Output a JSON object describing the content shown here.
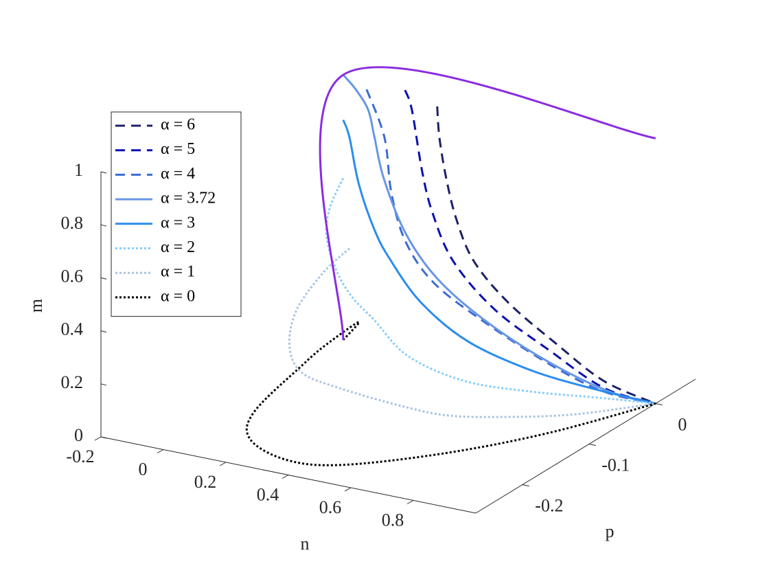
{
  "chart_data": {
    "type": "line3d",
    "xlabel": "n",
    "ylabel": "p",
    "zlabel": "m",
    "xlim": [
      -0.2,
      1
    ],
    "xticks": [
      -0.2,
      0,
      0.2,
      0.4,
      0.6,
      0.8
    ],
    "ylim": [
      -0.27,
      0.06
    ],
    "yticks": [
      -0.2,
      -0.1,
      0
    ],
    "zlim": [
      0,
      1
    ],
    "zticks": [
      0,
      0.2,
      0.4,
      0.6,
      0.8,
      1
    ],
    "legend": "upper left",
    "series": [
      {
        "name": "α = 6",
        "color": "#1c2166",
        "style": "dashed",
        "x": [
          0.301,
          0.308,
          0.33,
          0.363,
          0.418,
          0.527,
          0.681,
          0.835,
          1
        ],
        "y": [
          0,
          0,
          0,
          0,
          0,
          0,
          0,
          0,
          0
        ],
        "z": [
          0.953,
          0.838,
          0.688,
          0.54,
          0.398,
          0.269,
          0.15,
          0.045,
          0
        ]
      },
      {
        "name": "α = 5",
        "color": "#0a0fb0",
        "style": "dashed",
        "x": [
          0.198,
          0.22,
          0.253,
          0.286,
          0.352,
          0.484,
          0.66,
          0.835,
          1
        ],
        "y": [
          0,
          0,
          0,
          0,
          0,
          0,
          0,
          0,
          0
        ],
        "z": [
          0.99,
          0.92,
          0.695,
          0.548,
          0.382,
          0.232,
          0.119,
          0.019,
          0
        ]
      },
      {
        "name": "α = 4",
        "color": "#3d6bd4",
        "style": "dashed",
        "x": [
          0.075,
          0.132,
          0.154,
          0.198,
          0.286,
          0.44,
          0.66,
          0.835,
          1
        ],
        "y": [
          0,
          0,
          0,
          0,
          0,
          0,
          0,
          0,
          0
        ],
        "z": [
          0.963,
          0.796,
          0.594,
          0.423,
          0.289,
          0.183,
          0.067,
          0.005,
          0
        ]
      },
      {
        "name": "α = 3.72",
        "color": "#6896e4",
        "style": "solid",
        "x": [
          0,
          0.04,
          0.08,
          0.1,
          0.13,
          0.2,
          0.3,
          0.45,
          0.65,
          0.85,
          1
        ],
        "y": [
          0,
          0,
          0,
          0,
          0,
          0,
          0,
          0,
          0,
          0,
          0
        ],
        "z": [
          1,
          0.955,
          0.887,
          0.79,
          0.64,
          0.45,
          0.305,
          0.185,
          0.078,
          0.01,
          0
        ]
      },
      {
        "name": "α = 3",
        "color": "#2b8cee",
        "style": "solid",
        "x": [
          0,
          0.02,
          0.05,
          0.1,
          0.15,
          0.25,
          0.4,
          0.6,
          0.8,
          1
        ],
        "y": [
          0,
          0,
          0,
          0,
          0,
          0,
          0,
          0,
          0,
          0
        ],
        "z": [
          0.83,
          0.77,
          0.6,
          0.44,
          0.34,
          0.2,
          0.09,
          0.03,
          0.008,
          0
        ]
      },
      {
        "name": "α = 2",
        "color": "#87cefa",
        "style": "dotted",
        "x": [
          0,
          0,
          0,
          0.02,
          0.06,
          0.12,
          0.25,
          0.45,
          0.65,
          0.85,
          1
        ],
        "y": [
          0,
          -0.02,
          -0.025,
          -0.02,
          -0.015,
          -0.01,
          -0.02,
          -0.03,
          -0.025,
          -0.01,
          0
        ],
        "z": [
          0.61,
          0.53,
          0.43,
          0.3,
          0.2,
          0.12,
          0.03,
          0,
          0,
          0,
          0
        ]
      },
      {
        "name": "α = 1",
        "color": "#a9c4e2",
        "style": "dotted",
        "x": [
          0.02,
          0,
          0,
          0.02,
          0.08,
          0.2,
          0.4,
          0.55,
          0.7,
          0.85,
          1
        ],
        "y": [
          0,
          -0.03,
          -0.07,
          -0.09,
          -0.1,
          -0.1,
          -0.1,
          -0.1,
          -0.08,
          -0.05,
          0
        ],
        "z": [
          0.35,
          0.3,
          0.22,
          0.12,
          0.05,
          0.02,
          0,
          0,
          0,
          0,
          0
        ]
      },
      {
        "name": "α = 0",
        "color": "#000000",
        "style": "dotted",
        "x": [
          0,
          0.05,
          0.03,
          0,
          0.07,
          0.17,
          0.34,
          0.49,
          0.69,
          0.86,
          1
        ],
        "y": [
          0,
          0,
          -0.04,
          -0.06,
          -0.167,
          -0.219,
          -0.243,
          -0.231,
          -0.171,
          -0.094,
          0
        ],
        "z": [
          0,
          0.08,
          0.05,
          0,
          0,
          0,
          0,
          0,
          0,
          0,
          0
        ]
      },
      {
        "color": "#8a2be2",
        "style": "solid",
        "x": [
          0,
          0,
          1
        ],
        "y": [
          0,
          0,
          0
        ],
        "z": [
          0,
          1,
          1
        ]
      }
    ]
  }
}
